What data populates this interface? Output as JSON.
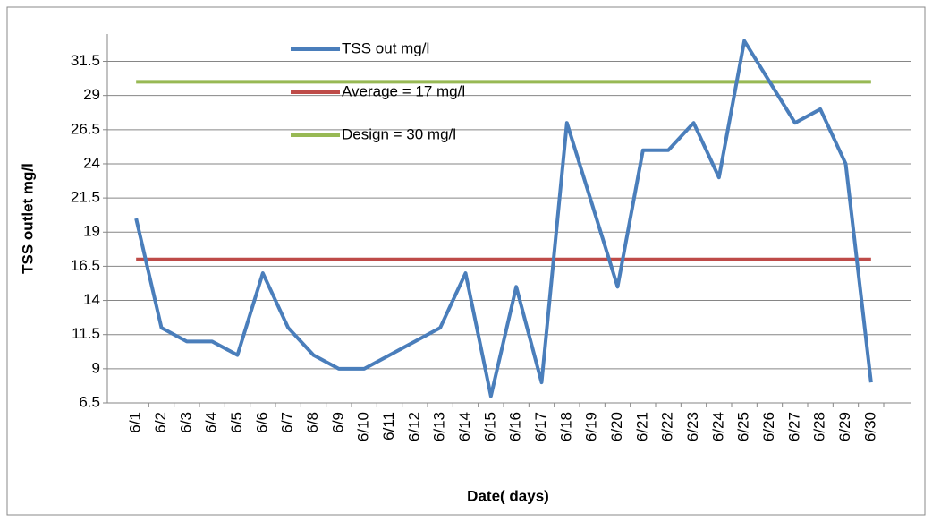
{
  "chart_data": {
    "type": "line",
    "x_label": "Date( days)",
    "y_label": "TSS outlet mg/l",
    "categories": [
      "6/1",
      "6/2",
      "6/3",
      "6/4",
      "6/5",
      "6/6",
      "6/7",
      "6/8",
      "6/9",
      "6/10",
      "6/11",
      "6/12",
      "6/13",
      "6/14",
      "6/15",
      "6/16",
      "6/17",
      "6/18",
      "6/19",
      "6/20",
      "6/21",
      "6/22",
      "6/23",
      "6/24",
      "6/25",
      "6/26",
      "6/27",
      "6/28",
      "6/29",
      "6/30"
    ],
    "series": [
      {
        "name": "TSS out mg/l",
        "color": "#4a7ebb",
        "values": [
          20,
          12,
          11,
          11,
          10,
          16,
          12,
          10,
          9,
          9,
          10,
          11,
          12,
          16,
          7,
          15,
          8,
          27,
          21,
          15,
          25,
          25,
          27,
          23,
          33,
          30,
          27,
          28,
          24,
          8
        ]
      },
      {
        "name": "Average = 17 mg/l",
        "color": "#be4b48",
        "values": [
          17,
          17,
          17,
          17,
          17,
          17,
          17,
          17,
          17,
          17,
          17,
          17,
          17,
          17,
          17,
          17,
          17,
          17,
          17,
          17,
          17,
          17,
          17,
          17,
          17,
          17,
          17,
          17,
          17,
          17
        ]
      },
      {
        "name": "Design = 30 mg/l",
        "color": "#98b954",
        "values": [
          30,
          30,
          30,
          30,
          30,
          30,
          30,
          30,
          30,
          30,
          30,
          30,
          30,
          30,
          30,
          30,
          30,
          30,
          30,
          30,
          30,
          30,
          30,
          30,
          30,
          30,
          30,
          30,
          30,
          30
        ]
      }
    ],
    "ylim": [
      6.5,
      33.5
    ],
    "yticks": [
      6.5,
      9,
      11.5,
      14,
      16.5,
      19,
      21.5,
      24,
      26.5,
      29,
      31.5
    ],
    "grid": true
  }
}
